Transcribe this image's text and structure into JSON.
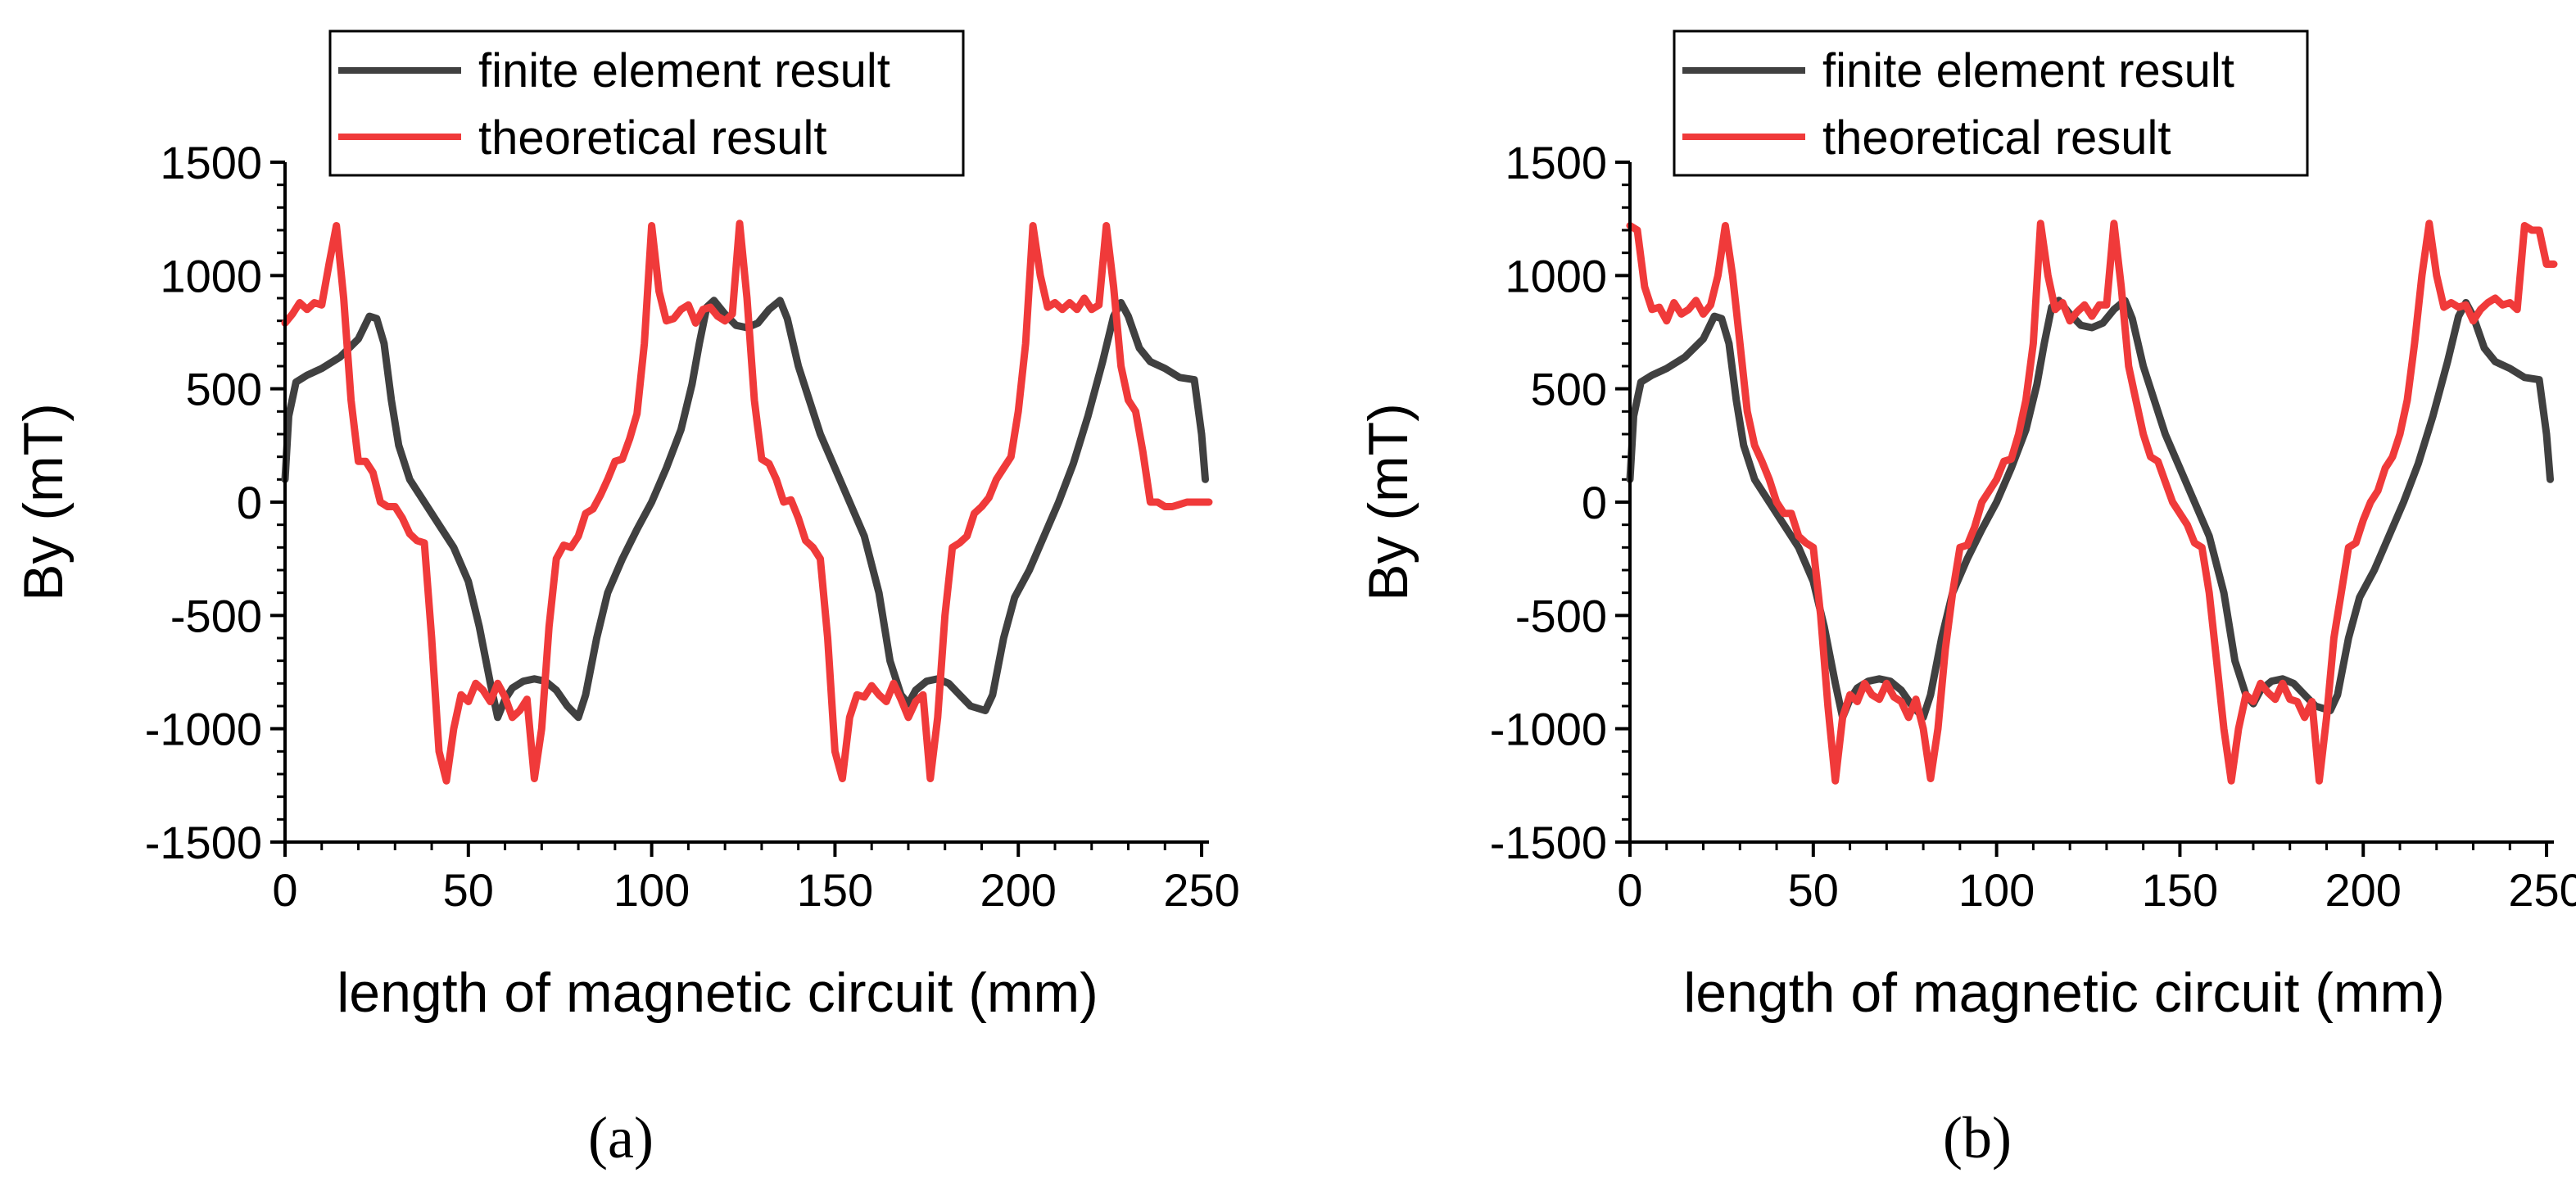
{
  "colors": {
    "fe": "#404040",
    "th": "#f03a3a",
    "axis": "#000000"
  },
  "legend": {
    "fe_label": "finite element result",
    "th_label": "theoretical result"
  },
  "chart_data": [
    {
      "panel": "(a)",
      "type": "line",
      "xlabel": "length of magnetic circuit (mm)",
      "ylabel": "By (mT)",
      "xlim": [
        0,
        252
      ],
      "ylim": [
        -1500,
        1500
      ],
      "xticks": [
        0,
        50,
        100,
        150,
        200,
        250
      ],
      "yticks": [
        1500,
        1000,
        500,
        0,
        -500,
        -1000,
        -1500
      ],
      "xtick_labels": [
        "0",
        "50",
        "100",
        "150",
        "200",
        "250"
      ],
      "ytick_labels": [
        "1500",
        "1000",
        "500",
        "0",
        "-500",
        "-1000",
        "-1500"
      ],
      "series": [
        {
          "name": "finite element result",
          "color_key": "fe",
          "x": [
            0,
            1,
            3,
            6,
            10,
            15,
            20,
            23,
            25,
            27,
            29,
            31,
            34,
            38,
            42,
            46,
            50,
            53,
            56,
            58,
            60,
            62,
            65,
            68,
            71,
            74,
            77,
            80,
            82,
            85,
            88,
            92,
            96,
            100,
            104,
            108,
            111,
            113,
            115,
            117,
            120,
            123,
            126,
            129,
            132,
            135,
            137,
            140,
            143,
            146,
            150,
            154,
            158,
            162,
            165,
            168,
            170,
            172,
            175,
            178,
            181,
            184,
            187,
            191,
            193,
            196,
            199,
            203,
            207,
            211,
            215,
            219,
            223,
            226,
            228,
            230,
            233,
            236,
            240,
            244,
            248,
            250,
            251
          ],
          "y": [
            100,
            380,
            530,
            560,
            590,
            640,
            720,
            820,
            810,
            700,
            450,
            250,
            100,
            0,
            -100,
            -200,
            -350,
            -550,
            -800,
            -950,
            -870,
            -820,
            -790,
            -780,
            -790,
            -830,
            -900,
            -950,
            -850,
            -600,
            -400,
            -250,
            -120,
            0,
            150,
            320,
            520,
            700,
            860,
            890,
            830,
            780,
            770,
            790,
            850,
            890,
            810,
            600,
            450,
            300,
            150,
            0,
            -150,
            -400,
            -700,
            -850,
            -890,
            -830,
            -790,
            -780,
            -800,
            -850,
            -900,
            -920,
            -850,
            -600,
            -420,
            -300,
            -150,
            0,
            170,
            380,
            620,
            820,
            880,
            820,
            680,
            620,
            590,
            550,
            540,
            300,
            100
          ]
        },
        {
          "name": "theoretical result",
          "color_key": "th",
          "x": [
            0,
            2,
            4,
            6,
            8,
            10,
            12,
            14,
            16,
            18,
            20,
            22,
            24,
            26,
            28,
            30,
            32,
            34,
            36,
            38,
            40,
            42,
            44,
            46,
            48,
            50,
            52,
            54,
            56,
            58,
            60,
            62,
            64,
            66,
            68,
            70,
            72,
            74,
            76,
            78,
            80,
            82,
            84,
            86,
            88,
            90,
            92,
            94,
            96,
            98,
            100,
            102,
            104,
            106,
            108,
            110,
            112,
            114,
            116,
            118,
            120,
            122,
            124,
            126,
            128,
            130,
            132,
            134,
            136,
            138,
            140,
            142,
            144,
            146,
            148,
            150,
            152,
            154,
            156,
            158,
            160,
            162,
            164,
            166,
            168,
            170,
            172,
            174,
            176,
            178,
            180,
            182,
            184,
            186,
            188,
            190,
            192,
            194,
            196,
            198,
            200,
            202,
            204,
            206,
            208,
            210,
            212,
            214,
            216,
            218,
            220,
            222,
            224,
            226,
            228,
            230,
            232,
            234,
            236,
            238,
            240,
            242,
            244,
            246,
            248,
            250,
            252
          ],
          "y": [
            790,
            830,
            880,
            850,
            880,
            870,
            1050,
            1220,
            900,
            450,
            180,
            180,
            130,
            0,
            -20,
            -20,
            -70,
            -140,
            -170,
            -180,
            -600,
            -1100,
            -1230,
            -1000,
            -850,
            -880,
            -800,
            -830,
            -880,
            -800,
            -860,
            -950,
            -920,
            -870,
            -1220,
            -1000,
            -550,
            -250,
            -190,
            -200,
            -150,
            -50,
            -30,
            30,
            100,
            180,
            190,
            280,
            390,
            700,
            1220,
            930,
            800,
            810,
            850,
            870,
            790,
            850,
            860,
            820,
            800,
            830,
            1230,
            900,
            450,
            190,
            170,
            100,
            0,
            10,
            -70,
            -170,
            -200,
            -250,
            -600,
            -1100,
            -1220,
            -950,
            -850,
            -860,
            -810,
            -850,
            -880,
            -800,
            -870,
            -950,
            -880,
            -850,
            -1220,
            -950,
            -500,
            -200,
            -180,
            -150,
            -50,
            -20,
            20,
            100,
            150,
            200,
            400,
            700,
            1220,
            1000,
            860,
            880,
            850,
            880,
            850,
            900,
            850,
            870,
            1220,
            950,
            600,
            450,
            400,
            220,
            0,
            0,
            -20,
            -20,
            -10,
            0,
            0,
            0,
            0
          ]
        }
      ]
    },
    {
      "panel": "(b)",
      "type": "line",
      "xlabel": "length of magnetic circuit (mm)",
      "ylabel": "By (mT)",
      "xlim": [
        0,
        252
      ],
      "ylim": [
        -1500,
        1500
      ],
      "xticks": [
        0,
        50,
        100,
        150,
        200,
        250
      ],
      "yticks": [
        1500,
        1000,
        500,
        0,
        -500,
        -1000,
        -1500
      ],
      "xtick_labels": [
        "0",
        "50",
        "100",
        "150",
        "200",
        "250"
      ],
      "ytick_labels": [
        "1500",
        "1000",
        "500",
        "0",
        "-500",
        "-1000",
        "-1500"
      ],
      "series": [
        {
          "name": "finite element result",
          "color_key": "fe",
          "x": [
            0,
            1,
            3,
            6,
            10,
            15,
            20,
            23,
            25,
            27,
            29,
            31,
            34,
            38,
            42,
            46,
            50,
            53,
            56,
            58,
            60,
            62,
            65,
            68,
            71,
            74,
            77,
            80,
            82,
            85,
            88,
            92,
            96,
            100,
            104,
            108,
            111,
            113,
            115,
            117,
            120,
            123,
            126,
            129,
            132,
            135,
            137,
            140,
            143,
            146,
            150,
            154,
            158,
            162,
            165,
            168,
            170,
            172,
            175,
            178,
            181,
            184,
            187,
            191,
            193,
            196,
            199,
            203,
            207,
            211,
            215,
            219,
            223,
            226,
            228,
            230,
            233,
            236,
            240,
            244,
            248,
            250,
            251
          ],
          "y": [
            100,
            380,
            530,
            560,
            590,
            640,
            720,
            820,
            810,
            700,
            450,
            250,
            100,
            0,
            -100,
            -200,
            -350,
            -550,
            -800,
            -950,
            -870,
            -820,
            -790,
            -780,
            -790,
            -830,
            -900,
            -950,
            -850,
            -600,
            -400,
            -250,
            -120,
            0,
            150,
            320,
            520,
            700,
            860,
            890,
            830,
            780,
            770,
            790,
            850,
            890,
            810,
            600,
            450,
            300,
            150,
            0,
            -150,
            -400,
            -700,
            -850,
            -890,
            -830,
            -790,
            -780,
            -800,
            -850,
            -900,
            -920,
            -850,
            -600,
            -420,
            -300,
            -150,
            0,
            170,
            380,
            620,
            820,
            880,
            820,
            680,
            620,
            590,
            550,
            540,
            300,
            100
          ]
        },
        {
          "name": "theoretical result",
          "color_key": "th",
          "x": [
            0,
            2,
            4,
            6,
            8,
            10,
            12,
            14,
            16,
            18,
            20,
            22,
            24,
            26,
            28,
            30,
            32,
            34,
            36,
            38,
            40,
            42,
            44,
            46,
            48,
            50,
            52,
            54,
            56,
            58,
            60,
            62,
            64,
            66,
            68,
            70,
            72,
            74,
            76,
            78,
            80,
            82,
            84,
            86,
            88,
            90,
            92,
            94,
            96,
            98,
            100,
            102,
            104,
            106,
            108,
            110,
            112,
            114,
            116,
            118,
            120,
            122,
            124,
            126,
            128,
            130,
            132,
            134,
            136,
            138,
            140,
            142,
            144,
            146,
            148,
            150,
            152,
            154,
            156,
            158,
            160,
            162,
            164,
            166,
            168,
            170,
            172,
            174,
            176,
            178,
            180,
            182,
            184,
            186,
            188,
            190,
            192,
            194,
            196,
            198,
            200,
            202,
            204,
            206,
            208,
            210,
            212,
            214,
            216,
            218,
            220,
            222,
            224,
            226,
            228,
            230,
            232,
            234,
            236,
            238,
            240,
            242,
            244,
            246,
            248,
            250,
            252
          ],
          "y": [
            1220,
            1200,
            950,
            850,
            860,
            800,
            880,
            830,
            850,
            890,
            830,
            870,
            1000,
            1220,
            1000,
            700,
            400,
            250,
            180,
            100,
            0,
            -50,
            -50,
            -150,
            -180,
            -200,
            -500,
            -900,
            -1230,
            -950,
            -850,
            -880,
            -800,
            -850,
            -870,
            -800,
            -860,
            -880,
            -950,
            -870,
            -1000,
            -1220,
            -1000,
            -650,
            -400,
            -200,
            -190,
            -110,
            0,
            50,
            100,
            180,
            190,
            300,
            450,
            700,
            1230,
            1000,
            850,
            880,
            800,
            840,
            870,
            820,
            870,
            870,
            1230,
            950,
            600,
            450,
            300,
            200,
            180,
            90,
            0,
            -50,
            -100,
            -180,
            -200,
            -400,
            -700,
            -1000,
            -1230,
            -1000,
            -850,
            -880,
            -800,
            -840,
            -870,
            -800,
            -870,
            -880,
            -950,
            -880,
            -1230,
            -950,
            -600,
            -400,
            -200,
            -180,
            -80,
            0,
            50,
            150,
            200,
            300,
            450,
            700,
            1000,
            1230,
            1000,
            860,
            880,
            860,
            870,
            800,
            850,
            880,
            900,
            870,
            880,
            850,
            1220,
            1200,
            1200,
            1050,
            1050
          ]
        }
      ]
    }
  ]
}
